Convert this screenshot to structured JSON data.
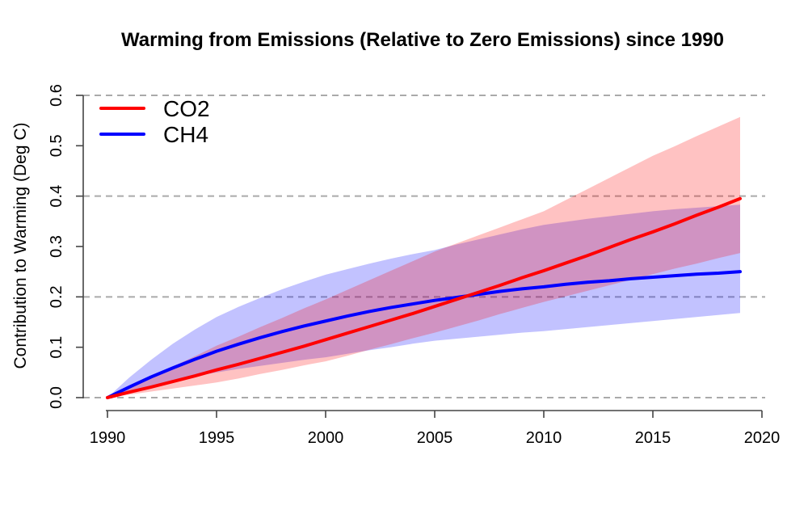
{
  "title": "Warming from Emissions (Relative to Zero Emissions) since 1990",
  "chart_data": {
    "type": "line",
    "title": "Warming from Emissions (Relative to Zero Emissions) since 1990",
    "xlabel": "",
    "ylabel": "Contribution to Warming (Deg C)",
    "xlim": [
      1990,
      2020
    ],
    "ylim": [
      0,
      0.6
    ],
    "grid": "dashed horizontal gridlines",
    "grid_color": "#aaaaaa",
    "axis_color": "#444444",
    "gridlines_at": [
      0,
      0.2,
      0.4,
      0.6
    ],
    "x_ticks": [
      1990,
      1995,
      2000,
      2005,
      2010,
      2015,
      2020
    ],
    "x_tick_labels": [
      "1990",
      "1995",
      "2000",
      "2005",
      "2010",
      "2015",
      "2020"
    ],
    "y_ticks": [
      0,
      0.1,
      0.2,
      0.3,
      0.4,
      0.5,
      0.6
    ],
    "y_tick_labels": [
      "0.0",
      "0.1",
      "0.2",
      "0.3",
      "0.4",
      "0.5",
      "0.6"
    ],
    "legend_position": "top-left",
    "years": [
      1990,
      1991,
      1992,
      1993,
      1994,
      1995,
      1996,
      1997,
      1998,
      1999,
      2000,
      2001,
      2002,
      2003,
      2004,
      2005,
      2006,
      2007,
      2008,
      2009,
      2010,
      2011,
      2012,
      2013,
      2014,
      2015,
      2016,
      2017,
      2018,
      2019
    ],
    "series": [
      {
        "name": "CO2",
        "color": "#ff0000",
        "band_opacity": 0.24,
        "values": [
          0,
          0.011,
          0.021,
          0.032,
          0.043,
          0.055,
          0.066,
          0.078,
          0.09,
          0.102,
          0.115,
          0.128,
          0.141,
          0.154,
          0.167,
          0.181,
          0.195,
          0.209,
          0.223,
          0.238,
          0.252,
          0.267,
          0.282,
          0.298,
          0.314,
          0.329,
          0.345,
          0.362,
          0.378,
          0.395
        ],
        "upper": [
          0,
          0.021,
          0.041,
          0.062,
          0.082,
          0.103,
          0.121,
          0.14,
          0.158,
          0.177,
          0.195,
          0.214,
          0.233,
          0.252,
          0.271,
          0.29,
          0.306,
          0.322,
          0.338,
          0.354,
          0.37,
          0.392,
          0.414,
          0.436,
          0.458,
          0.48,
          0.499,
          0.519,
          0.538,
          0.557
        ],
        "lower": [
          0,
          0.006,
          0.012,
          0.018,
          0.024,
          0.03,
          0.038,
          0.047,
          0.055,
          0.064,
          0.072,
          0.083,
          0.095,
          0.106,
          0.118,
          0.129,
          0.141,
          0.153,
          0.166,
          0.178,
          0.19,
          0.201,
          0.212,
          0.223,
          0.234,
          0.245,
          0.256,
          0.266,
          0.277,
          0.287
        ]
      },
      {
        "name": "CH4",
        "color": "#0000ff",
        "band_opacity": 0.24,
        "values": [
          0,
          0.021,
          0.041,
          0.059,
          0.076,
          0.092,
          0.106,
          0.119,
          0.131,
          0.142,
          0.152,
          0.162,
          0.171,
          0.179,
          0.186,
          0.193,
          0.199,
          0.205,
          0.211,
          0.216,
          0.22,
          0.225,
          0.229,
          0.232,
          0.236,
          0.239,
          0.242,
          0.245,
          0.247,
          0.25
        ],
        "upper": [
          0,
          0.04,
          0.075,
          0.107,
          0.135,
          0.16,
          0.18,
          0.198,
          0.215,
          0.23,
          0.244,
          0.255,
          0.266,
          0.276,
          0.285,
          0.293,
          0.304,
          0.314,
          0.324,
          0.334,
          0.343,
          0.349,
          0.355,
          0.36,
          0.365,
          0.37,
          0.374,
          0.377,
          0.38,
          0.383
        ],
        "lower": [
          0,
          0.012,
          0.023,
          0.033,
          0.042,
          0.05,
          0.057,
          0.063,
          0.069,
          0.075,
          0.08,
          0.087,
          0.094,
          0.1,
          0.107,
          0.113,
          0.117,
          0.121,
          0.125,
          0.129,
          0.132,
          0.136,
          0.14,
          0.144,
          0.148,
          0.152,
          0.156,
          0.16,
          0.164,
          0.168
        ]
      }
    ]
  },
  "legend": {
    "items": [
      {
        "label": "CO2",
        "color": "#ff0000"
      },
      {
        "label": "CH4",
        "color": "#0000ff"
      }
    ]
  }
}
